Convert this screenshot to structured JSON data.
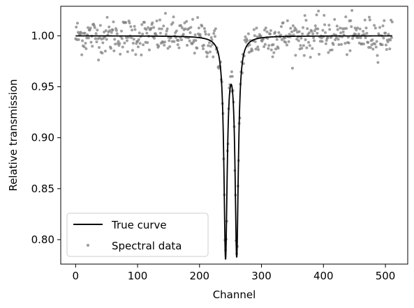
{
  "chart_data": {
    "type": "line",
    "title": "",
    "xlabel": "Channel",
    "ylabel": "Relative transmission",
    "xlim": [
      -24,
      536
    ],
    "ylim": [
      0.776,
      1.029
    ],
    "xticks": [
      0,
      100,
      200,
      300,
      400,
      500
    ],
    "yticks": [
      0.8,
      0.85,
      0.9,
      0.95,
      1.0
    ],
    "xtick_labels": [
      "0",
      "100",
      "200",
      "300",
      "400",
      "500"
    ],
    "ytick_labels": [
      "0.80",
      "0.85",
      "0.90",
      "0.95",
      "1.00"
    ],
    "grid": false,
    "legend_position": "lower-left",
    "series": [
      {
        "name": "True curve",
        "kind": "line",
        "color": "#000000",
        "model": {
          "baseline": 1.0,
          "dips": [
            {
              "center": 242,
              "depth": 0.213,
              "hwhm": 3.2
            },
            {
              "center": 260,
              "depth": 0.211,
              "hwhm": 3.2
            }
          ],
          "x_range": [
            0,
            511
          ]
        }
      },
      {
        "name": "Spectral data",
        "kind": "scatter",
        "color": "#808080",
        "noise_sigma": 0.009,
        "n_points": 512
      }
    ]
  }
}
